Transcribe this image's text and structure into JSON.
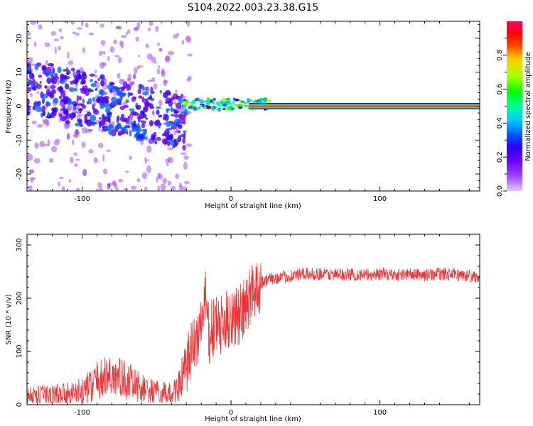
{
  "figure": {
    "title": "S104.2022.003.23.38.G15"
  },
  "colors": {
    "snr_line": "#ee3333",
    "colormap": [
      "#e2ccff",
      "#a64dff",
      "#6a00ff",
      "#2b00ff",
      "#0066ff",
      "#00ccff",
      "#00ff99",
      "#00ff00",
      "#aaff00",
      "#ffcc00",
      "#ff4400",
      "#ff0000",
      "#ff0066"
    ]
  },
  "chart_data": [
    {
      "type": "heatmap",
      "xlabel": "Height of straight line (km)",
      "ylabel": "Frequency (Hz)",
      "xlim": [
        -137,
        167
      ],
      "ylim": [
        -25,
        25
      ],
      "xticks": [
        -100,
        0,
        100
      ],
      "xtick_labels": [
        "-100",
        "0",
        "100"
      ],
      "yticks": [
        -20,
        -10,
        0,
        10,
        20
      ],
      "ytick_labels": [
        "-20",
        "-10",
        "0",
        "10",
        "20"
      ],
      "colorbar": {
        "label": "Normalized spectral amplitude",
        "range": [
          0,
          1
        ],
        "ticks": [
          0.0,
          0.2,
          0.4,
          0.6,
          0.8
        ],
        "tick_labels": [
          "0.0",
          "0.2",
          "0.4",
          "0.6",
          "0.8"
        ]
      },
      "features": [
        {
          "x": [
            12,
            167
          ],
          "y": 0,
          "amplitude": 0.9,
          "description": ""
        },
        {
          "x": [
            -137,
            -30
          ],
          "y_center_start": 6,
          "y_center_end": -5,
          "amplitude": 0.3
        },
        {
          "x": [
            -30,
            25
          ],
          "y": 0.5,
          "amplitude": 0.6
        }
      ]
    },
    {
      "type": "line",
      "xlabel": "Height of straight line (km)",
      "ylabel": "SNR (10 * v/v)",
      "xlim": [
        -137,
        167
      ],
      "ylim": [
        0,
        320
      ],
      "xticks": [
        -100,
        0,
        100
      ],
      "xtick_labels": [
        "-100",
        "0",
        "100"
      ],
      "yticks": [
        0,
        100,
        200,
        300
      ],
      "ytick_labels": [
        "0",
        "100",
        "200",
        "300"
      ],
      "series": [
        {
          "x": [
            -137,
            -120,
            -100,
            -90,
            -80,
            -70,
            -60,
            -50,
            -40,
            -35,
            -30,
            -25,
            -20,
            -17,
            -15,
            -10,
            -5,
            0,
            5,
            10,
            15,
            20,
            25,
            30,
            40,
            50,
            60,
            70,
            80,
            90,
            100,
            110,
            120,
            130,
            140,
            150,
            160,
            167
          ],
          "values": [
            15,
            18,
            25,
            45,
            55,
            45,
            30,
            22,
            20,
            35,
            70,
            110,
            150,
            200,
            130,
            150,
            145,
            170,
            165,
            180,
            220,
            230,
            235,
            238,
            242,
            245,
            246,
            244,
            245,
            243,
            246,
            244,
            245,
            243,
            246,
            244,
            242,
            240
          ]
        }
      ]
    }
  ]
}
